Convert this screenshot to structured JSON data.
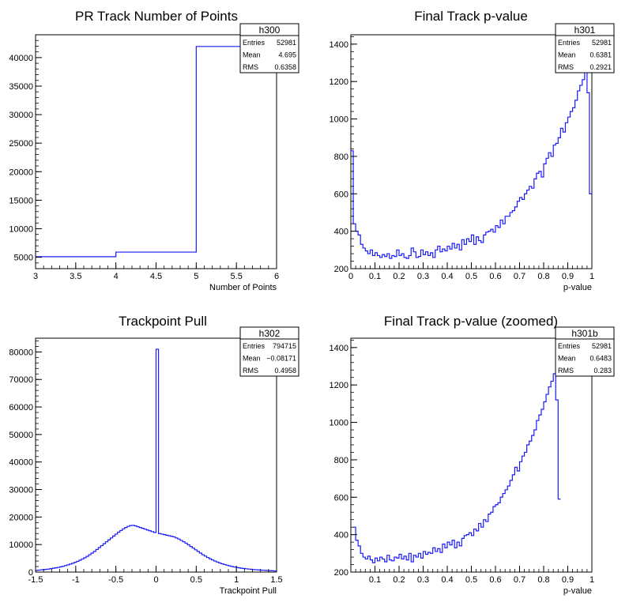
{
  "chart_data": [
    {
      "type": "histogram",
      "title": "PR Track Number of Points",
      "xlabel": "Number of Points",
      "ylabel": "",
      "xlim": [
        3,
        6
      ],
      "ylim": [
        3000,
        44000
      ],
      "xticks": [
        3,
        3.5,
        4,
        4.5,
        5,
        5.5,
        6
      ],
      "xtick_labels": [
        "3",
        "3.5",
        "4",
        "4.5",
        "5",
        "5.5",
        "6"
      ],
      "yticks": [
        5000,
        10000,
        15000,
        20000,
        25000,
        30000,
        35000,
        40000
      ],
      "ytick_labels": [
        "5000",
        "10000",
        "15000",
        "20000",
        "25000",
        "30000",
        "35000",
        "40000"
      ],
      "bins": {
        "edges": [
          3,
          4,
          5,
          6
        ],
        "counts": [
          5100,
          5900,
          41950
        ]
      },
      "stats": {
        "name": "h300",
        "rows": [
          [
            "Entries",
            "52981"
          ],
          [
            "Mean",
            "4.695"
          ],
          [
            "RMS",
            "0.6358"
          ]
        ]
      }
    },
    {
      "type": "histogram",
      "title": "Final Track p-value",
      "xlabel": "p-value",
      "ylabel": "",
      "xlim": [
        0,
        1
      ],
      "ylim": [
        200,
        1450
      ],
      "xticks": [
        0,
        0.1,
        0.2,
        0.3,
        0.4,
        0.5,
        0.6,
        0.7,
        0.8,
        0.9,
        1
      ],
      "xtick_labels": [
        "0",
        "0.1",
        "0.2",
        "0.3",
        "0.4",
        "0.5",
        "0.6",
        "0.7",
        "0.8",
        "0.9",
        "1"
      ],
      "yticks": [
        200,
        400,
        600,
        800,
        1000,
        1200,
        1400
      ],
      "ytick_labels": [
        "200",
        "400",
        "600",
        "800",
        "1000",
        "1200",
        "1400"
      ],
      "bins": {
        "start": 0,
        "width": 0.01,
        "counts": [
          830,
          440,
          400,
          380,
          330,
          310,
          295,
          280,
          300,
          270,
          285,
          270,
          260,
          275,
          265,
          280,
          255,
          270,
          265,
          300,
          270,
          280,
          260,
          255,
          270,
          310,
          290,
          260,
          265,
          300,
          275,
          290,
          270,
          285,
          260,
          300,
          320,
          290,
          305,
          295,
          320,
          305,
          335,
          310,
          330,
          300,
          355,
          330,
          360,
          345,
          380,
          330,
          370,
          350,
          340,
          380,
          395,
          400,
          410,
          395,
          430,
          420,
          460,
          440,
          480,
          480,
          500,
          510,
          530,
          560,
          580,
          570,
          600,
          620,
          640,
          630,
          680,
          710,
          720,
          690,
          760,
          790,
          820,
          800,
          860,
          870,
          900,
          950,
          930,
          980,
          1010,
          1040,
          1060,
          1100,
          1150,
          1180,
          1210,
          1260,
          1140,
          600
        ]
      },
      "stats": {
        "name": "h301",
        "rows": [
          [
            "Entries",
            "52981"
          ],
          [
            "Mean",
            "0.6381"
          ],
          [
            "RMS",
            "0.2921"
          ]
        ]
      }
    },
    {
      "type": "histogram",
      "title": "Trackpoint Pull",
      "xlabel": "Trackpoint Pull",
      "ylabel": "",
      "xlim": [
        -1.5,
        1.5
      ],
      "ylim": [
        0,
        85000
      ],
      "xticks": [
        -1.5,
        -1,
        -0.5,
        0,
        0.5,
        1,
        1.5
      ],
      "xtick_labels": [
        "-1.5",
        "-1",
        "-0.5",
        "0",
        "0.5",
        "1",
        "1.5"
      ],
      "yticks": [
        0,
        10000,
        20000,
        30000,
        40000,
        50000,
        60000,
        70000,
        80000
      ],
      "ytick_labels": [
        "0",
        "10000",
        "20000",
        "30000",
        "40000",
        "50000",
        "60000",
        "70000",
        "80000"
      ],
      "bins": {
        "start": -1.5,
        "width": 0.03,
        "counts": [
          600,
          700,
          800,
          900,
          1000,
          1100,
          1250,
          1400,
          1550,
          1700,
          1900,
          2100,
          2350,
          2600,
          2900,
          3200,
          3550,
          3900,
          4300,
          4750,
          5200,
          5700,
          6300,
          6900,
          7500,
          8200,
          8900,
          9600,
          10300,
          11000,
          11700,
          12400,
          13100,
          13800,
          14500,
          15100,
          15700,
          16200,
          16600,
          16900,
          17000,
          16800,
          16500,
          16200,
          15900,
          15600,
          15300,
          15000,
          14700,
          14400,
          81000,
          14000,
          13800,
          13600,
          13400,
          13200,
          13000,
          12800,
          12400,
          12000,
          11500,
          11000,
          10500,
          9900,
          9300,
          8700,
          8100,
          7500,
          6900,
          6300,
          5800,
          5300,
          4800,
          4400,
          4000,
          3650,
          3300,
          3000,
          2750,
          2500,
          2250,
          2050,
          1850,
          1700,
          1550,
          1400,
          1300,
          1200,
          1100,
          1000,
          920,
          840,
          780,
          720,
          660,
          600,
          550,
          500,
          460,
          420
        ]
      },
      "stats": {
        "name": "h302",
        "rows": [
          [
            "Entries",
            "794715"
          ],
          [
            "Mean",
            "−0.08171"
          ],
          [
            "RMS",
            "0.4958"
          ]
        ]
      }
    },
    {
      "type": "histogram",
      "title": "Final Track p-value (zoomed)",
      "xlabel": "p-value",
      "ylabel": "",
      "xlim": [
        0,
        1
      ],
      "ylim": [
        200,
        1450
      ],
      "xticks": [
        0.1,
        0.2,
        0.3,
        0.4,
        0.5,
        0.6,
        0.7,
        0.8,
        0.9,
        1
      ],
      "xtick_labels": [
        "0.1",
        "0.2",
        "0.3",
        "0.4",
        "0.5",
        "0.6",
        "0.7",
        "0.8",
        "0.9",
        "1"
      ],
      "yticks": [
        200,
        400,
        600,
        800,
        1000,
        1200,
        1400
      ],
      "ytick_labels": [
        "200",
        "400",
        "600",
        "800",
        "1000",
        "1200",
        "1400"
      ],
      "bins": {
        "start": 0.01,
        "width": 0.01,
        "counts": [
          440,
          370,
          340,
          300,
          280,
          270,
          285,
          265,
          250,
          275,
          260,
          280,
          270,
          255,
          290,
          265,
          260,
          280,
          275,
          295,
          270,
          285,
          265,
          300,
          255,
          290,
          280,
          300,
          275,
          310,
          295,
          305,
          300,
          330,
          310,
          325,
          305,
          350,
          330,
          360,
          345,
          370,
          330,
          360,
          340,
          380,
          395,
          400,
          410,
          395,
          430,
          420,
          460,
          440,
          480,
          470,
          510,
          520,
          550,
          560,
          570,
          600,
          620,
          640,
          660,
          690,
          720,
          760,
          740,
          790,
          820,
          840,
          880,
          900,
          930,
          960,
          1010,
          1040,
          1070,
          1110,
          1150,
          1190,
          1220,
          1260,
          1120,
          590
        ]
      },
      "stats": {
        "name": "h301b",
        "rows": [
          [
            "Entries",
            "52981"
          ],
          [
            "Mean",
            "0.6483"
          ],
          [
            "RMS",
            "0.283"
          ]
        ]
      }
    }
  ]
}
